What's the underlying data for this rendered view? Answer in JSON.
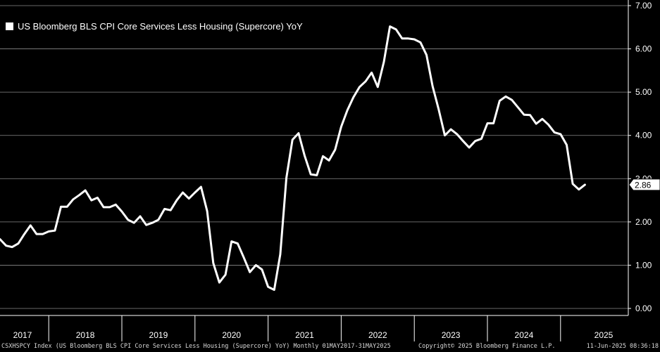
{
  "chart_data": {
    "type": "line",
    "title": "",
    "legend": "US Bloomberg BLS CPI Core Services Less Housing (Supercore) YoY",
    "legend_position": "top-left",
    "ylim": [
      0,
      7
    ],
    "y_ticks": [
      "0.00",
      "1.00",
      "2.00",
      "3.00",
      "4.00",
      "5.00",
      "6.00",
      "7.00"
    ],
    "x_tick_labels": [
      "2017",
      "2018",
      "2019",
      "2020",
      "2021",
      "2022",
      "2023",
      "2024",
      "2025"
    ],
    "x_start": "2017-05",
    "x_end": "2025-05",
    "last_value_label": "2.86",
    "grid": true,
    "series": [
      {
        "name": "US Bloomberg BLS CPI Core Services Less Housing (Supercore) YoY",
        "color": "#ffffff",
        "x": [
          "2017-05",
          "2017-06",
          "2017-07",
          "2017-08",
          "2017-09",
          "2017-10",
          "2017-11",
          "2017-12",
          "2018-01",
          "2018-02",
          "2018-03",
          "2018-04",
          "2018-05",
          "2018-06",
          "2018-07",
          "2018-08",
          "2018-09",
          "2018-10",
          "2018-11",
          "2018-12",
          "2019-01",
          "2019-02",
          "2019-03",
          "2019-04",
          "2019-05",
          "2019-06",
          "2019-07",
          "2019-08",
          "2019-09",
          "2019-10",
          "2019-11",
          "2019-12",
          "2020-01",
          "2020-02",
          "2020-03",
          "2020-04",
          "2020-05",
          "2020-06",
          "2020-07",
          "2020-08",
          "2020-09",
          "2020-10",
          "2020-11",
          "2020-12",
          "2021-01",
          "2021-02",
          "2021-03",
          "2021-04",
          "2021-05",
          "2021-06",
          "2021-07",
          "2021-08",
          "2021-09",
          "2021-10",
          "2021-11",
          "2021-12",
          "2022-01",
          "2022-02",
          "2022-03",
          "2022-04",
          "2022-05",
          "2022-06",
          "2022-07",
          "2022-08",
          "2022-09",
          "2022-10",
          "2022-11",
          "2022-12",
          "2023-01",
          "2023-02",
          "2023-03",
          "2023-04",
          "2023-05",
          "2023-06",
          "2023-07",
          "2023-08",
          "2023-09",
          "2023-10",
          "2023-11",
          "2023-12",
          "2024-01",
          "2024-02",
          "2024-03",
          "2024-04",
          "2024-05",
          "2024-06",
          "2024-07",
          "2024-08",
          "2024-09",
          "2024-10",
          "2024-11",
          "2024-12",
          "2025-01",
          "2025-02",
          "2025-03",
          "2025-04",
          "2025-05"
        ],
        "values": [
          1.6,
          1.45,
          1.42,
          1.5,
          1.72,
          1.92,
          1.72,
          1.72,
          1.78,
          1.8,
          2.35,
          2.35,
          2.52,
          2.62,
          2.73,
          2.5,
          2.56,
          2.34,
          2.34,
          2.4,
          2.24,
          2.05,
          1.98,
          2.13,
          1.93,
          1.98,
          2.05,
          2.3,
          2.27,
          2.5,
          2.68,
          2.54,
          2.68,
          2.81,
          2.25,
          1.05,
          0.6,
          0.78,
          1.55,
          1.5,
          1.18,
          0.84,
          1.0,
          0.9,
          0.5,
          0.43,
          1.25,
          3.02,
          3.9,
          4.05,
          3.53,
          3.1,
          3.08,
          3.52,
          3.42,
          3.67,
          4.2,
          4.58,
          4.88,
          5.12,
          5.25,
          5.45,
          5.12,
          5.7,
          6.52,
          6.45,
          6.24,
          6.24,
          6.22,
          6.15,
          5.86,
          5.14,
          4.6,
          4.0,
          4.14,
          4.03,
          3.87,
          3.72,
          3.87,
          3.92,
          4.28,
          4.28,
          4.8,
          4.9,
          4.82,
          4.65,
          4.48,
          4.47,
          4.27,
          4.38,
          4.25,
          4.07,
          4.03,
          3.78,
          2.88,
          2.75,
          2.86
        ]
      }
    ]
  },
  "footer": {
    "left": "CSXHSPCY Index (US Bloomberg BLS CPI Core Services Less Housing (Supercore) YoY) Monthly 01MAY2017-31MAY2025",
    "middle": "Copyright© 2025 Bloomberg Finance L.P.",
    "right": "11-Jun-2025 08:36:18"
  }
}
